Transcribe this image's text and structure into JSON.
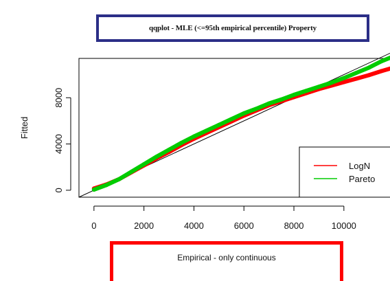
{
  "title": "qqplot - MLE (<=95th empirical percentile) Property",
  "xlabel": "Empirical -  only continuous",
  "ylabel": "Fitted",
  "chart_data": {
    "type": "scatter",
    "title": "qqplot - MLE (<=95th empirical percentile) Property",
    "xlabel": "Empirical -  only continuous",
    "ylabel": "Fitted",
    "xlim": [
      -600,
      11900
    ],
    "ylim": [
      -600,
      11400
    ],
    "xticks": [
      0,
      2000,
      4000,
      6000,
      8000,
      10000
    ],
    "yticks": [
      0,
      4000,
      8000
    ],
    "xtick_labels": [
      "0",
      "2000",
      "4000",
      "6000",
      "8000",
      "10000"
    ],
    "ytick_labels": [
      "0",
      "4000",
      "8000"
    ],
    "grid": false,
    "legend_position": "bottom-right",
    "reference_line": {
      "x": [
        -600,
        11900
      ],
      "y": [
        -600,
        11900
      ],
      "color": "#000000"
    },
    "series": [
      {
        "name": "LogN",
        "color": "#ff0000",
        "x": [
          0,
          500,
          1000,
          1500,
          2000,
          2500,
          3000,
          3500,
          4000,
          4500,
          5000,
          5500,
          6000,
          6500,
          7000,
          7500,
          8000,
          8500,
          9000,
          9500,
          10000,
          10500,
          11000,
          11500,
          11900
        ],
        "y": [
          150,
          500,
          950,
          1550,
          2150,
          2750,
          3300,
          3900,
          4450,
          4950,
          5450,
          5950,
          6450,
          6900,
          7350,
          7700,
          8050,
          8400,
          8750,
          9050,
          9350,
          9650,
          9950,
          10300,
          10550
        ]
      },
      {
        "name": "Pareto",
        "color": "#00cc00",
        "x": [
          0,
          500,
          1000,
          1500,
          2000,
          2500,
          3000,
          3500,
          4000,
          4500,
          5000,
          5500,
          6000,
          6500,
          7000,
          7500,
          8000,
          8500,
          9000,
          9500,
          10000,
          10500,
          11000,
          11500,
          11900
        ],
        "y": [
          50,
          450,
          950,
          1600,
          2250,
          2900,
          3500,
          4100,
          4650,
          5150,
          5650,
          6150,
          6650,
          7050,
          7500,
          7850,
          8250,
          8600,
          8950,
          9300,
          9700,
          10150,
          10600,
          11150,
          11500
        ]
      }
    ]
  }
}
